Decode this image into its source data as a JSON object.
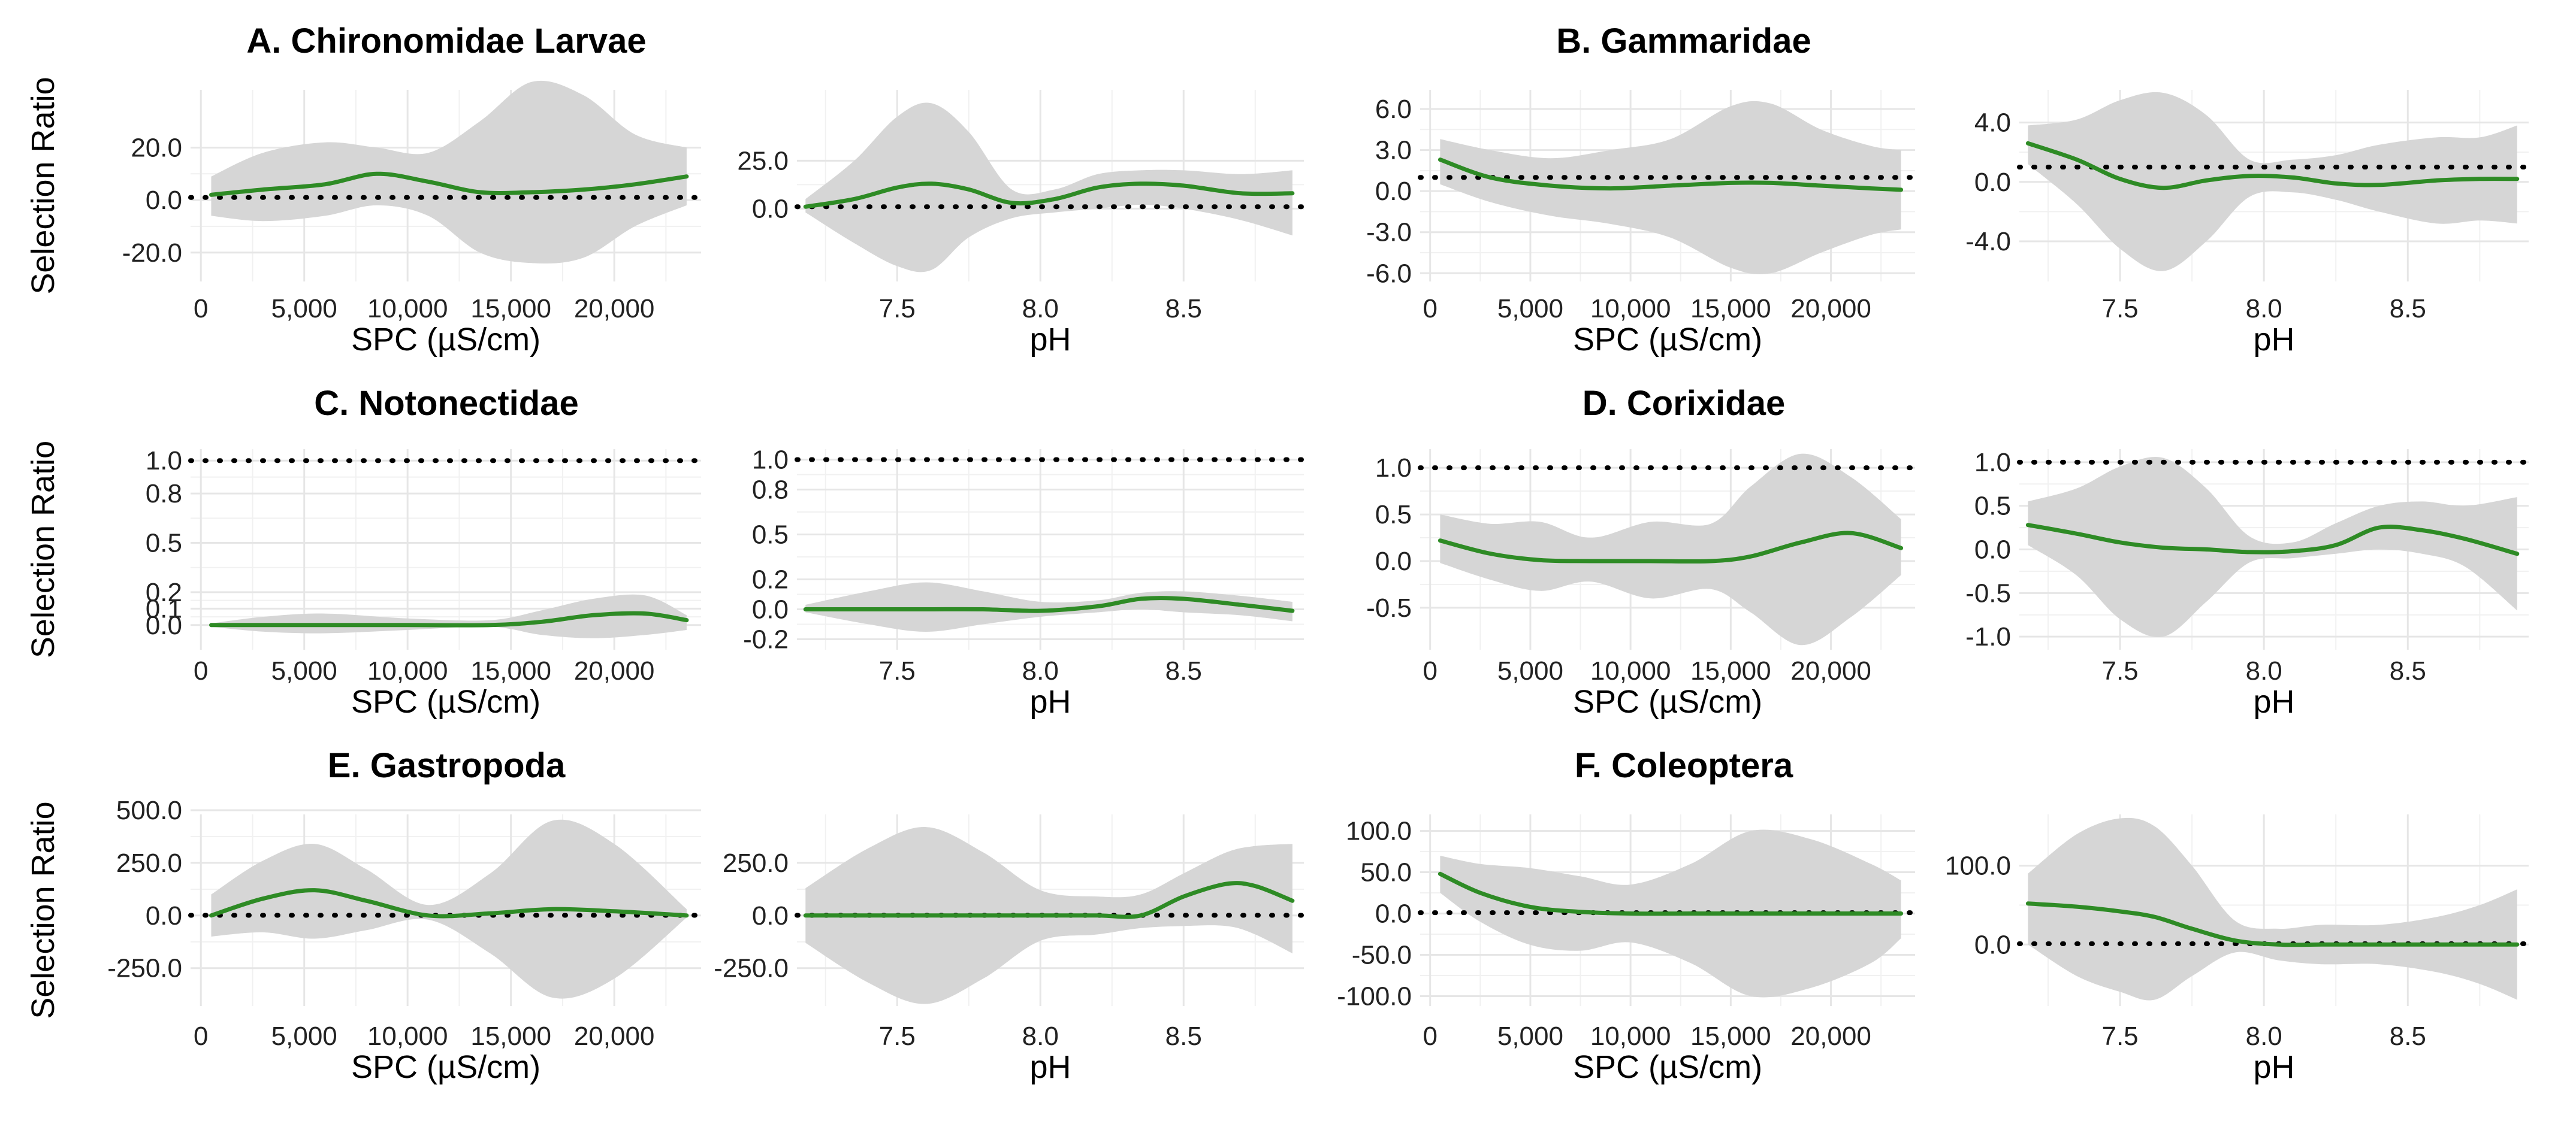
{
  "chart_data": {
    "type": "line",
    "ylabel": "Selection Ratio",
    "reference_line": 1.0,
    "xaxes": {
      "spc": {
        "label": "SPC (µS/cm)",
        "ticks": [
          0,
          5000,
          10000,
          15000,
          20000
        ],
        "tick_labels": [
          "0",
          "5,000",
          "10,000",
          "15,000",
          "20,000"
        ],
        "lim": [
          -500,
          24200
        ]
      },
      "ph": {
        "label": "pH",
        "ticks": [
          7.5,
          8.0,
          8.5
        ],
        "tick_labels": [
          "7.5",
          "8.0",
          "8.5"
        ],
        "lim": [
          7.15,
          8.92
        ]
      }
    },
    "panels": [
      {
        "id": "A",
        "title": "A. Chironomidae Larvae",
        "xaxis": "spc",
        "ylim": [
          -31,
          42
        ],
        "y_ticks": [
          -20,
          0,
          20
        ],
        "y_tick_labels": [
          "-20.0",
          "0.0",
          "20.0"
        ],
        "x": [
          500,
          3000,
          6000,
          8500,
          11000,
          13500,
          16000,
          18500,
          21000,
          23500
        ],
        "fit": [
          2,
          4,
          6,
          10,
          7,
          3,
          3,
          4,
          6,
          9
        ],
        "lower": [
          -6,
          -8,
          -6,
          -2,
          -6,
          -20,
          -24,
          -22,
          -10,
          -2
        ],
        "upper": [
          9,
          18,
          22,
          20,
          18,
          30,
          45,
          40,
          25,
          20
        ]
      },
      {
        "id": "A",
        "title": "",
        "xaxis": "ph",
        "ylim": [
          -38,
          62
        ],
        "y_ticks": [
          0,
          25
        ],
        "y_tick_labels": [
          "0.0",
          "25.0"
        ],
        "x": [
          7.18,
          7.35,
          7.5,
          7.62,
          7.75,
          7.9,
          8.05,
          8.2,
          8.35,
          8.5,
          8.7,
          8.88
        ],
        "fit": [
          1,
          5,
          11,
          13,
          10,
          3,
          5,
          11,
          13,
          12,
          8,
          8
        ],
        "lower": [
          -2,
          -18,
          -30,
          -32,
          -15,
          -5,
          -2,
          0,
          2,
          0,
          -6,
          -14
        ],
        "upper": [
          5,
          25,
          48,
          55,
          40,
          10,
          10,
          18,
          20,
          20,
          18,
          20
        ]
      },
      {
        "id": "B",
        "title": "B. Gammaridae",
        "xaxis": "spc",
        "ylim": [
          -6.6,
          7.4
        ],
        "y_ticks": [
          -6,
          -3,
          0,
          3,
          6
        ],
        "y_tick_labels": [
          "-6.0",
          "-3.0",
          "0.0",
          "3.0",
          "6.0"
        ],
        "x": [
          500,
          3000,
          6000,
          9000,
          12000,
          15000,
          17000,
          19500,
          22000,
          23500
        ],
        "fit": [
          2.3,
          1.0,
          0.4,
          0.2,
          0.4,
          0.6,
          0.6,
          0.4,
          0.2,
          0.1
        ],
        "lower": [
          0.5,
          -0.8,
          -1.8,
          -2.4,
          -3.4,
          -5.6,
          -6.0,
          -4.5,
          -3.2,
          -2.8
        ],
        "upper": [
          3.8,
          3.0,
          2.4,
          3.0,
          3.8,
          6.2,
          6.4,
          4.5,
          3.3,
          3.0
        ]
      },
      {
        "id": "B",
        "title": "",
        "xaxis": "ph",
        "ylim": [
          -6.7,
          6.2
        ],
        "y_ticks": [
          -4,
          0,
          4
        ],
        "y_tick_labels": [
          "-4.0",
          "0.0",
          "4.0"
        ],
        "x": [
          7.18,
          7.35,
          7.5,
          7.65,
          7.8,
          7.95,
          8.1,
          8.25,
          8.4,
          8.6,
          8.75,
          8.88
        ],
        "fit": [
          2.6,
          1.5,
          0.2,
          -0.4,
          0.1,
          0.4,
          0.3,
          -0.1,
          -0.2,
          0.1,
          0.2,
          0.2
        ],
        "lower": [
          1.2,
          -1.5,
          -4.5,
          -6.0,
          -4.0,
          -1.0,
          -0.7,
          -1.2,
          -2.0,
          -2.8,
          -2.6,
          -2.8
        ],
        "upper": [
          3.8,
          4.2,
          5.5,
          6.0,
          4.5,
          1.5,
          1.5,
          1.8,
          2.5,
          3.0,
          3.0,
          3.8
        ]
      },
      {
        "id": "C",
        "title": "C. Notonectidae",
        "xaxis": "spc",
        "ylim": [
          -0.15,
          1.07
        ],
        "y_ticks": [
          0,
          0.1,
          0.2,
          0.5,
          0.8,
          1.0
        ],
        "y_tick_labels": [
          "0.0",
          "0.1",
          "0.2",
          "0.5",
          "0.8",
          "1.0"
        ],
        "x": [
          500,
          3000,
          6000,
          10000,
          14000,
          16500,
          19000,
          21500,
          23500
        ],
        "fit": [
          0,
          0,
          0,
          0,
          0,
          0.02,
          0.06,
          0.07,
          0.03
        ],
        "lower": [
          -0.01,
          -0.04,
          -0.05,
          -0.03,
          -0.01,
          -0.06,
          -0.08,
          -0.06,
          -0.03
        ],
        "upper": [
          0.01,
          0.05,
          0.07,
          0.04,
          0.03,
          0.09,
          0.16,
          0.18,
          0.06
        ]
      },
      {
        "id": "C",
        "title": "",
        "xaxis": "ph",
        "ylim": [
          -0.27,
          1.07
        ],
        "y_ticks": [
          -0.2,
          0,
          0.2,
          0.5,
          0.8,
          1.0
        ],
        "y_tick_labels": [
          "-0.2",
          "0.0",
          "0.2",
          "0.5",
          "0.8",
          "1.0"
        ],
        "x": [
          7.18,
          7.4,
          7.6,
          7.8,
          8.0,
          8.2,
          8.35,
          8.5,
          8.7,
          8.88
        ],
        "fit": [
          0,
          0,
          0,
          0,
          -0.01,
          0.02,
          0.07,
          0.07,
          0.03,
          -0.01
        ],
        "lower": [
          -0.02,
          -0.1,
          -0.15,
          -0.1,
          -0.05,
          -0.02,
          0,
          -0.02,
          -0.04,
          -0.08
        ],
        "upper": [
          0.03,
          0.12,
          0.18,
          0.12,
          0.05,
          0.06,
          0.11,
          0.12,
          0.09,
          0.05
        ]
      },
      {
        "id": "D",
        "title": "D. Corixidae",
        "xaxis": "spc",
        "ylim": [
          -0.95,
          1.2
        ],
        "y_ticks": [
          -0.5,
          0,
          0.5,
          1.0
        ],
        "y_tick_labels": [
          "-0.5",
          "0.0",
          "0.5",
          "1.0"
        ],
        "x": [
          500,
          3000,
          5500,
          8000,
          11000,
          14000,
          16000,
          18500,
          21000,
          23500
        ],
        "fit": [
          0.22,
          0.08,
          0.01,
          0,
          0,
          0,
          0.05,
          0.2,
          0.3,
          0.14
        ],
        "lower": [
          -0.02,
          -0.2,
          -0.32,
          -0.22,
          -0.4,
          -0.3,
          -0.55,
          -0.9,
          -0.6,
          -0.15
        ],
        "upper": [
          0.5,
          0.4,
          0.42,
          0.25,
          0.42,
          0.4,
          0.8,
          1.15,
          0.9,
          0.45
        ]
      },
      {
        "id": "D",
        "title": "",
        "xaxis": "ph",
        "ylim": [
          -1.15,
          1.15
        ],
        "y_ticks": [
          -1,
          -0.5,
          0,
          0.5,
          1.0
        ],
        "y_tick_labels": [
          "-1.0",
          "-0.5",
          "0.0",
          "0.5",
          "1.0"
        ],
        "x": [
          7.18,
          7.35,
          7.5,
          7.65,
          7.8,
          7.95,
          8.1,
          8.25,
          8.4,
          8.55,
          8.7,
          8.88
        ],
        "fit": [
          0.28,
          0.18,
          0.08,
          0.02,
          0,
          -0.03,
          -0.02,
          0.05,
          0.25,
          0.22,
          0.12,
          -0.05
        ],
        "lower": [
          0.05,
          -0.3,
          -0.8,
          -1.0,
          -0.6,
          -0.15,
          -0.1,
          -0.05,
          0,
          -0.05,
          -0.2,
          -0.7
        ],
        "upper": [
          0.55,
          0.7,
          0.95,
          1.05,
          0.7,
          0.15,
          0.08,
          0.3,
          0.5,
          0.55,
          0.5,
          0.6
        ]
      },
      {
        "id": "E",
        "title": "E. Gastropoda",
        "xaxis": "spc",
        "ylim": [
          -430,
          480
        ],
        "y_ticks": [
          -250,
          0,
          250,
          500
        ],
        "y_tick_labels": [
          "-250.0",
          "0.0",
          "250.0",
          "500.0"
        ],
        "x": [
          500,
          3000,
          5500,
          8000,
          11000,
          14000,
          17000,
          20000,
          23500
        ],
        "fit": [
          0,
          80,
          120,
          70,
          0,
          10,
          30,
          20,
          0
        ],
        "lower": [
          -100,
          -80,
          -110,
          -70,
          -20,
          -180,
          -390,
          -300,
          -10
        ],
        "upper": [
          100,
          260,
          340,
          220,
          50,
          200,
          450,
          340,
          30
        ]
      },
      {
        "id": "E",
        "title": "",
        "xaxis": "ph",
        "ylim": [
          -430,
          480
        ],
        "y_ticks": [
          -250,
          0,
          250
        ],
        "y_tick_labels": [
          "-250.0",
          "0.0",
          "250.0"
        ],
        "x": [
          7.18,
          7.4,
          7.6,
          7.8,
          8.0,
          8.2,
          8.35,
          8.5,
          8.65,
          8.75,
          8.88
        ],
        "fit": [
          0,
          0,
          0,
          0,
          0,
          0,
          0,
          90,
          150,
          140,
          70
        ],
        "lower": [
          -130,
          -320,
          -420,
          -300,
          -120,
          -90,
          -60,
          -50,
          -50,
          -90,
          -180
        ],
        "upper": [
          130,
          320,
          420,
          300,
          120,
          90,
          100,
          200,
          300,
          330,
          340
        ]
      },
      {
        "id": "F",
        "title": "F. Coleoptera",
        "xaxis": "spc",
        "ylim": [
          -112,
          120
        ],
        "y_ticks": [
          -100,
          -50,
          0,
          50,
          100
        ],
        "y_tick_labels": [
          "-100.0",
          "-50.0",
          "0.0",
          "50.0",
          "100.0"
        ],
        "x": [
          500,
          2500,
          5000,
          7500,
          10000,
          13000,
          16000,
          19000,
          22000,
          23500
        ],
        "fit": [
          48,
          25,
          8,
          2,
          0,
          0,
          0,
          0,
          0,
          0
        ],
        "lower": [
          25,
          -10,
          -38,
          -45,
          -35,
          -60,
          -100,
          -90,
          -60,
          -30
        ],
        "upper": [
          70,
          60,
          55,
          45,
          35,
          60,
          100,
          90,
          60,
          40
        ]
      },
      {
        "id": "F",
        "title": "",
        "xaxis": "ph",
        "ylim": [
          -78,
          165
        ],
        "y_ticks": [
          0,
          100
        ],
        "y_tick_labels": [
          "0.0",
          "100.0"
        ],
        "x": [
          7.18,
          7.35,
          7.5,
          7.62,
          7.75,
          7.9,
          8.05,
          8.2,
          8.4,
          8.6,
          8.75,
          8.88
        ],
        "fit": [
          52,
          48,
          42,
          35,
          20,
          5,
          0,
          0,
          0,
          0,
          0,
          0
        ],
        "lower": [
          0,
          -40,
          -60,
          -70,
          -40,
          -10,
          -20,
          -25,
          -25,
          -35,
          -50,
          -70
        ],
        "upper": [
          90,
          140,
          160,
          150,
          100,
          30,
          20,
          25,
          25,
          35,
          50,
          70
        ]
      }
    ]
  }
}
